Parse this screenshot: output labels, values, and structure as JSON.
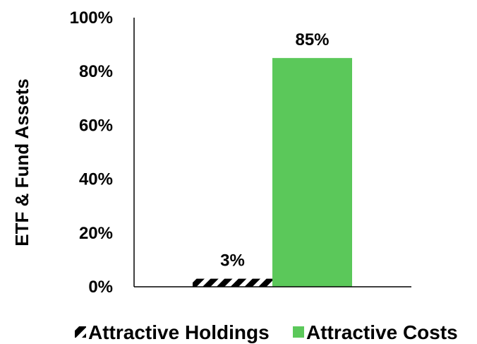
{
  "chart_data": {
    "type": "bar",
    "categories": [
      "Attractive Holdings",
      "Attractive Costs"
    ],
    "series": [
      {
        "name": "Attractive Holdings",
        "values": [
          3,
          null
        ],
        "color": "#000000",
        "pattern": "diagonal-stripes"
      },
      {
        "name": "Attractive Costs",
        "values": [
          null,
          85
        ],
        "color": "#5BC85A"
      }
    ],
    "data_labels": [
      "3%",
      "85%"
    ],
    "ylabel": "ETF & Fund Assets",
    "xlabel": "",
    "ylim": [
      0,
      100
    ],
    "yticks": [
      0,
      20,
      40,
      60,
      80,
      100
    ],
    "ytick_labels": [
      "0%",
      "20%",
      "40%",
      "60%",
      "80%",
      "100%"
    ],
    "grid": false,
    "legend": {
      "position": "bottom",
      "entries": [
        "Attractive Holdings",
        "Attractive Costs"
      ]
    }
  }
}
